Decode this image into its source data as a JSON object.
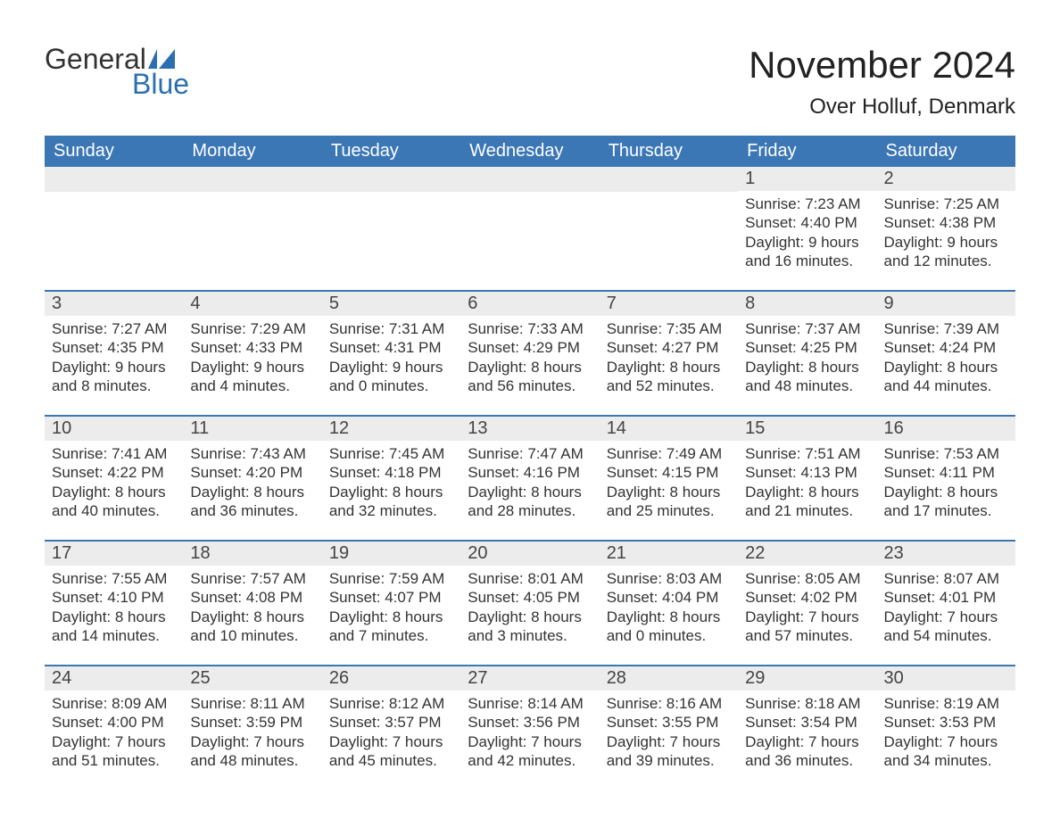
{
  "brand": {
    "line1": "General",
    "line2": "Blue",
    "flag_color": "#2c6fb0",
    "text_dark": "#333333"
  },
  "title": "November 2024",
  "location": "Over Holluf, Denmark",
  "colors": {
    "header_bg": "#3b76b5",
    "header_text": "#ffffff",
    "daynum_bg": "#ececec",
    "body_text": "#333333",
    "rule": "#3b76b5",
    "page_bg": "#ffffff"
  },
  "weekdays": [
    "Sunday",
    "Monday",
    "Tuesday",
    "Wednesday",
    "Thursday",
    "Friday",
    "Saturday"
  ],
  "weeks": [
    [
      {
        "day": "",
        "lines": []
      },
      {
        "day": "",
        "lines": []
      },
      {
        "day": "",
        "lines": []
      },
      {
        "day": "",
        "lines": []
      },
      {
        "day": "",
        "lines": []
      },
      {
        "day": "1",
        "lines": [
          "Sunrise: 7:23 AM",
          "Sunset: 4:40 PM",
          "Daylight: 9 hours",
          "and 16 minutes."
        ]
      },
      {
        "day": "2",
        "lines": [
          "Sunrise: 7:25 AM",
          "Sunset: 4:38 PM",
          "Daylight: 9 hours",
          "and 12 minutes."
        ]
      }
    ],
    [
      {
        "day": "3",
        "lines": [
          "Sunrise: 7:27 AM",
          "Sunset: 4:35 PM",
          "Daylight: 9 hours",
          "and 8 minutes."
        ]
      },
      {
        "day": "4",
        "lines": [
          "Sunrise: 7:29 AM",
          "Sunset: 4:33 PM",
          "Daylight: 9 hours",
          "and 4 minutes."
        ]
      },
      {
        "day": "5",
        "lines": [
          "Sunrise: 7:31 AM",
          "Sunset: 4:31 PM",
          "Daylight: 9 hours",
          "and 0 minutes."
        ]
      },
      {
        "day": "6",
        "lines": [
          "Sunrise: 7:33 AM",
          "Sunset: 4:29 PM",
          "Daylight: 8 hours",
          "and 56 minutes."
        ]
      },
      {
        "day": "7",
        "lines": [
          "Sunrise: 7:35 AM",
          "Sunset: 4:27 PM",
          "Daylight: 8 hours",
          "and 52 minutes."
        ]
      },
      {
        "day": "8",
        "lines": [
          "Sunrise: 7:37 AM",
          "Sunset: 4:25 PM",
          "Daylight: 8 hours",
          "and 48 minutes."
        ]
      },
      {
        "day": "9",
        "lines": [
          "Sunrise: 7:39 AM",
          "Sunset: 4:24 PM",
          "Daylight: 8 hours",
          "and 44 minutes."
        ]
      }
    ],
    [
      {
        "day": "10",
        "lines": [
          "Sunrise: 7:41 AM",
          "Sunset: 4:22 PM",
          "Daylight: 8 hours",
          "and 40 minutes."
        ]
      },
      {
        "day": "11",
        "lines": [
          "Sunrise: 7:43 AM",
          "Sunset: 4:20 PM",
          "Daylight: 8 hours",
          "and 36 minutes."
        ]
      },
      {
        "day": "12",
        "lines": [
          "Sunrise: 7:45 AM",
          "Sunset: 4:18 PM",
          "Daylight: 8 hours",
          "and 32 minutes."
        ]
      },
      {
        "day": "13",
        "lines": [
          "Sunrise: 7:47 AM",
          "Sunset: 4:16 PM",
          "Daylight: 8 hours",
          "and 28 minutes."
        ]
      },
      {
        "day": "14",
        "lines": [
          "Sunrise: 7:49 AM",
          "Sunset: 4:15 PM",
          "Daylight: 8 hours",
          "and 25 minutes."
        ]
      },
      {
        "day": "15",
        "lines": [
          "Sunrise: 7:51 AM",
          "Sunset: 4:13 PM",
          "Daylight: 8 hours",
          "and 21 minutes."
        ]
      },
      {
        "day": "16",
        "lines": [
          "Sunrise: 7:53 AM",
          "Sunset: 4:11 PM",
          "Daylight: 8 hours",
          "and 17 minutes."
        ]
      }
    ],
    [
      {
        "day": "17",
        "lines": [
          "Sunrise: 7:55 AM",
          "Sunset: 4:10 PM",
          "Daylight: 8 hours",
          "and 14 minutes."
        ]
      },
      {
        "day": "18",
        "lines": [
          "Sunrise: 7:57 AM",
          "Sunset: 4:08 PM",
          "Daylight: 8 hours",
          "and 10 minutes."
        ]
      },
      {
        "day": "19",
        "lines": [
          "Sunrise: 7:59 AM",
          "Sunset: 4:07 PM",
          "Daylight: 8 hours",
          "and 7 minutes."
        ]
      },
      {
        "day": "20",
        "lines": [
          "Sunrise: 8:01 AM",
          "Sunset: 4:05 PM",
          "Daylight: 8 hours",
          "and 3 minutes."
        ]
      },
      {
        "day": "21",
        "lines": [
          "Sunrise: 8:03 AM",
          "Sunset: 4:04 PM",
          "Daylight: 8 hours",
          "and 0 minutes."
        ]
      },
      {
        "day": "22",
        "lines": [
          "Sunrise: 8:05 AM",
          "Sunset: 4:02 PM",
          "Daylight: 7 hours",
          "and 57 minutes."
        ]
      },
      {
        "day": "23",
        "lines": [
          "Sunrise: 8:07 AM",
          "Sunset: 4:01 PM",
          "Daylight: 7 hours",
          "and 54 minutes."
        ]
      }
    ],
    [
      {
        "day": "24",
        "lines": [
          "Sunrise: 8:09 AM",
          "Sunset: 4:00 PM",
          "Daylight: 7 hours",
          "and 51 minutes."
        ]
      },
      {
        "day": "25",
        "lines": [
          "Sunrise: 8:11 AM",
          "Sunset: 3:59 PM",
          "Daylight: 7 hours",
          "and 48 minutes."
        ]
      },
      {
        "day": "26",
        "lines": [
          "Sunrise: 8:12 AM",
          "Sunset: 3:57 PM",
          "Daylight: 7 hours",
          "and 45 minutes."
        ]
      },
      {
        "day": "27",
        "lines": [
          "Sunrise: 8:14 AM",
          "Sunset: 3:56 PM",
          "Daylight: 7 hours",
          "and 42 minutes."
        ]
      },
      {
        "day": "28",
        "lines": [
          "Sunrise: 8:16 AM",
          "Sunset: 3:55 PM",
          "Daylight: 7 hours",
          "and 39 minutes."
        ]
      },
      {
        "day": "29",
        "lines": [
          "Sunrise: 8:18 AM",
          "Sunset: 3:54 PM",
          "Daylight: 7 hours",
          "and 36 minutes."
        ]
      },
      {
        "day": "30",
        "lines": [
          "Sunrise: 8:19 AM",
          "Sunset: 3:53 PM",
          "Daylight: 7 hours",
          "and 34 minutes."
        ]
      }
    ]
  ]
}
